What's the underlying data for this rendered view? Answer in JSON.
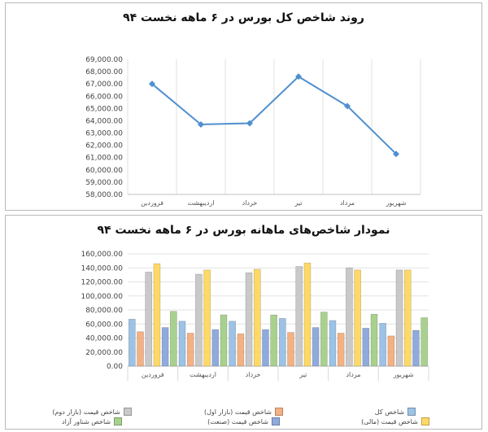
{
  "chart_data": [
    {
      "type": "line",
      "title": "روند شاخص کل بورس در ۶ ماهه نخست ۹۴",
      "categories": [
        "فروردین",
        "اردیبهشت",
        "خرداد",
        "تیر",
        "مرداد",
        "شهریور"
      ],
      "series": [
        {
          "values": [
            67000,
            63700,
            63800,
            67600,
            65200,
            61300
          ]
        }
      ],
      "yticks": [
        "58,000.00",
        "59,000.00",
        "60,000.00",
        "61,000.00",
        "62,000.00",
        "63,000.00",
        "64,000.00",
        "65,000.00",
        "66,000.00",
        "67,000.00",
        "68,000.00",
        "69,000.00"
      ],
      "ylim": [
        58000,
        69000
      ],
      "grid": "vertical",
      "color": "#4f8fd0"
    },
    {
      "type": "bar",
      "title": "نمودار شاخص‌های ماهانه بورس در ۶ ماهه نخست ۹۴",
      "categories": [
        "فروردین",
        "اردیبهشت",
        "خرداد",
        "تیر",
        "مرداد",
        "شهریور"
      ],
      "series": [
        {
          "name": "شاخص کل",
          "color": "#9cc2e5",
          "values": [
            67000,
            64000,
            64000,
            68000,
            65000,
            61000
          ]
        },
        {
          "name": "شاخص قیمت (بازار اول)",
          "color": "#f4b183",
          "values": [
            49000,
            47000,
            46000,
            48000,
            47000,
            43000
          ]
        },
        {
          "name": "شاخص قیمت (بازار دوم)",
          "color": "#c9c9c9",
          "values": [
            134000,
            131000,
            133000,
            142000,
            140000,
            137000
          ]
        },
        {
          "name": "شاخص قیمت (مالی)",
          "color": "#ffd966",
          "values": [
            146000,
            137000,
            138000,
            147000,
            137000,
            137000
          ]
        },
        {
          "name": "شاخص قیمت (صنعت)",
          "color": "#8faadc",
          "values": [
            55000,
            52000,
            52000,
            55000,
            54000,
            51000
          ]
        },
        {
          "name": "شاخص شناور آزاد",
          "color": "#a9d18e",
          "values": [
            78000,
            73000,
            73000,
            77000,
            74000,
            69000
          ]
        }
      ],
      "yticks": [
        "0.00",
        "20,000.00",
        "40,000.00",
        "60,000.00",
        "80,000.00",
        "100,000.00",
        "120,000.00",
        "140,000.00",
        "160,000.00"
      ],
      "ylim": [
        0,
        160000
      ],
      "grid": "horizontal",
      "legend": "bottom"
    }
  ]
}
